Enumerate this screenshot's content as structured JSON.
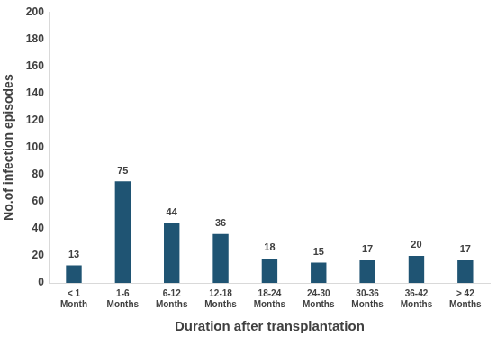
{
  "chart_data": {
    "type": "bar",
    "x_label": "Duration after transplantation",
    "y_label": "No.of infection episodes",
    "categories": [
      "< 1 Month",
      "1-6 Months",
      "6-12 Months",
      "12-18 Months",
      "18-24 Months",
      "24-30 Months",
      "30-36 Months",
      "36-42 Months",
      "> 42 Months"
    ],
    "values": [
      13,
      75,
      44,
      36,
      18,
      15,
      17,
      20,
      17
    ],
    "color": "#1f5473",
    "ylim": [
      0,
      200
    ],
    "yticks": [
      0,
      20,
      40,
      60,
      80,
      100,
      120,
      140,
      160,
      180,
      200
    ],
    "grid": false,
    "data_labels": true
  }
}
